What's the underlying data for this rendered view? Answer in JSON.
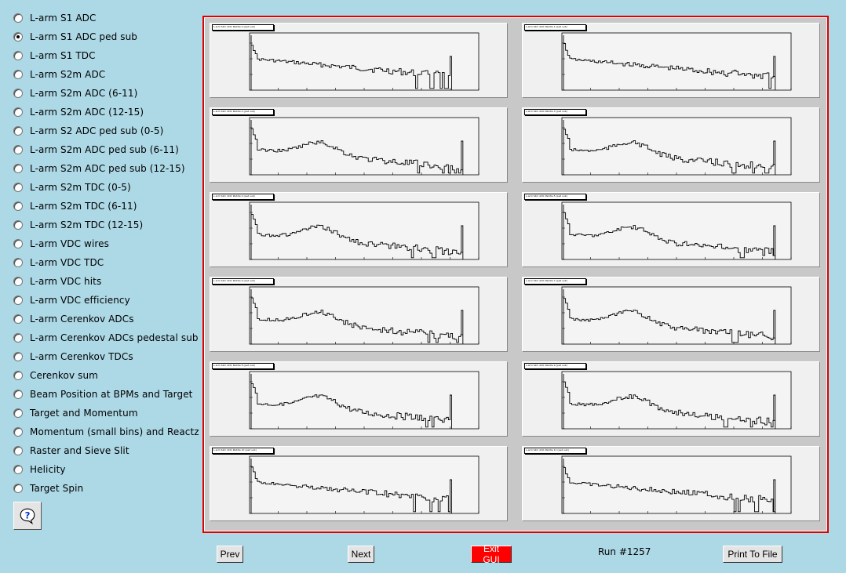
{
  "sidebar": {
    "selected_index": 1,
    "items": [
      {
        "label": "L-arm S1 ADC"
      },
      {
        "label": "L-arm S1 ADC ped sub"
      },
      {
        "label": "L-arm S1 TDC"
      },
      {
        "label": "L-arm S2m ADC"
      },
      {
        "label": "L-arm S2m ADC (6-11)"
      },
      {
        "label": "L-arm S2m ADC (12-15)"
      },
      {
        "label": "L-arm S2 ADC ped sub (0-5)"
      },
      {
        "label": "L-arm S2m ADC ped sub (6-11)"
      },
      {
        "label": "L-arm S2m ADC ped sub (12-15)"
      },
      {
        "label": "L-arm S2m TDC (0-5)"
      },
      {
        "label": "L-arm S2m TDC (6-11)"
      },
      {
        "label": "L-arm S2m TDC (12-15)"
      },
      {
        "label": "L-arm VDC wires"
      },
      {
        "label": "L-arm VDC TDC"
      },
      {
        "label": "L-arm VDC hits"
      },
      {
        "label": "L-arm VDC efficiency"
      },
      {
        "label": "L-arm Cerenkov ADCs"
      },
      {
        "label": "L-arm Cerenkov ADCs pedestal sub"
      },
      {
        "label": "L-arm Cerenkov TDCs"
      },
      {
        "label": "Cerenkov sum"
      },
      {
        "label": "Beam Position at BPMs and Target"
      },
      {
        "label": "Target and Momentum"
      },
      {
        "label": "Momentum (small bins) and Reactz"
      },
      {
        "label": "Raster and Sieve Slit"
      },
      {
        "label": "Helicity"
      },
      {
        "label": "Target Spin"
      }
    ],
    "help_icon": "question-mark-icon"
  },
  "toolbar": {
    "prev_label": "Prev",
    "next_label": "Next",
    "exit_label": "Exit GUI",
    "run_label": "Run #1257",
    "print_label": "Print To File",
    "exit_color": "#ff0000"
  },
  "canvas": {
    "frame_color": "#e00000",
    "pads": [
      {
        "title": "L-arm S2m ADC Paddle 0 (ped sub)",
        "shape": "flat"
      },
      {
        "title": "L-arm S2m ADC Paddle 1 (ped sub)",
        "shape": "flat"
      },
      {
        "title": "L-arm S2m ADC Paddle 2 (ped sub)",
        "shape": "bump"
      },
      {
        "title": "L-arm S2m ADC Paddle 3 (ped sub)",
        "shape": "bump"
      },
      {
        "title": "L-arm S2m ADC Paddle 4 (ped sub)",
        "shape": "bump"
      },
      {
        "title": "L-arm S2m ADC Paddle 5 (ped sub)",
        "shape": "bump"
      },
      {
        "title": "L-arm S2m ADC Paddle 6 (ped sub)",
        "shape": "bump"
      },
      {
        "title": "L-arm S2m ADC Paddle 7 (ped sub)",
        "shape": "bump"
      },
      {
        "title": "L-arm S2m ADC Paddle 8 (ped sub)",
        "shape": "bump"
      },
      {
        "title": "L-arm S2m ADC Paddle 9 (ped sub)",
        "shape": "bump"
      },
      {
        "title": "L-arm S2m ADC Paddle 10 (ped sub)",
        "shape": "flat"
      },
      {
        "title": "L-arm S2m ADC Paddle 11 (ped sub)",
        "shape": "flat"
      }
    ]
  }
}
